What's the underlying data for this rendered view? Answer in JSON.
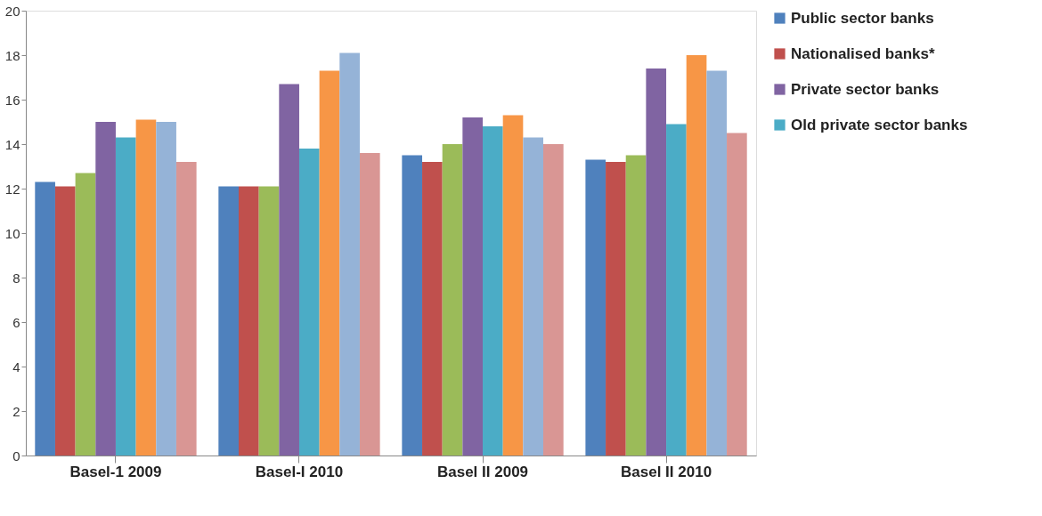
{
  "chart_data": {
    "type": "bar",
    "categories": [
      "Basel-1 2009",
      "Basel-I 2010",
      "Basel II 2009",
      "Basel II 2010"
    ],
    "series": [
      {
        "name": "Public sector banks",
        "color": "#4f81bd",
        "values": [
          12.3,
          12.1,
          13.5,
          13.3
        ]
      },
      {
        "name": "Nationalised banks*",
        "color": "#c0504d",
        "values": [
          12.1,
          12.1,
          13.2,
          13.2
        ]
      },
      {
        "color": "#9bbb59",
        "values": [
          12.7,
          12.1,
          14.0,
          13.5
        ]
      },
      {
        "name": "Private sector banks",
        "color": "#8064a2",
        "values": [
          15.0,
          16.7,
          15.2,
          17.4
        ]
      },
      {
        "name": "Old private sector banks",
        "color": "#4bacc6",
        "values": [
          14.3,
          13.8,
          14.8,
          14.9
        ]
      },
      {
        "color": "#f79646",
        "values": [
          15.1,
          17.3,
          15.3,
          18.0
        ]
      },
      {
        "color": "#95b3d7",
        "values": [
          15.0,
          18.1,
          14.3,
          17.3
        ]
      },
      {
        "color": "#d99694",
        "values": [
          13.2,
          13.6,
          14.0,
          14.5
        ]
      }
    ],
    "ylim": [
      0,
      20
    ],
    "yticks": [
      0,
      2,
      4,
      6,
      8,
      10,
      12,
      14,
      16,
      18,
      20
    ],
    "grid": false,
    "legend": "right"
  }
}
